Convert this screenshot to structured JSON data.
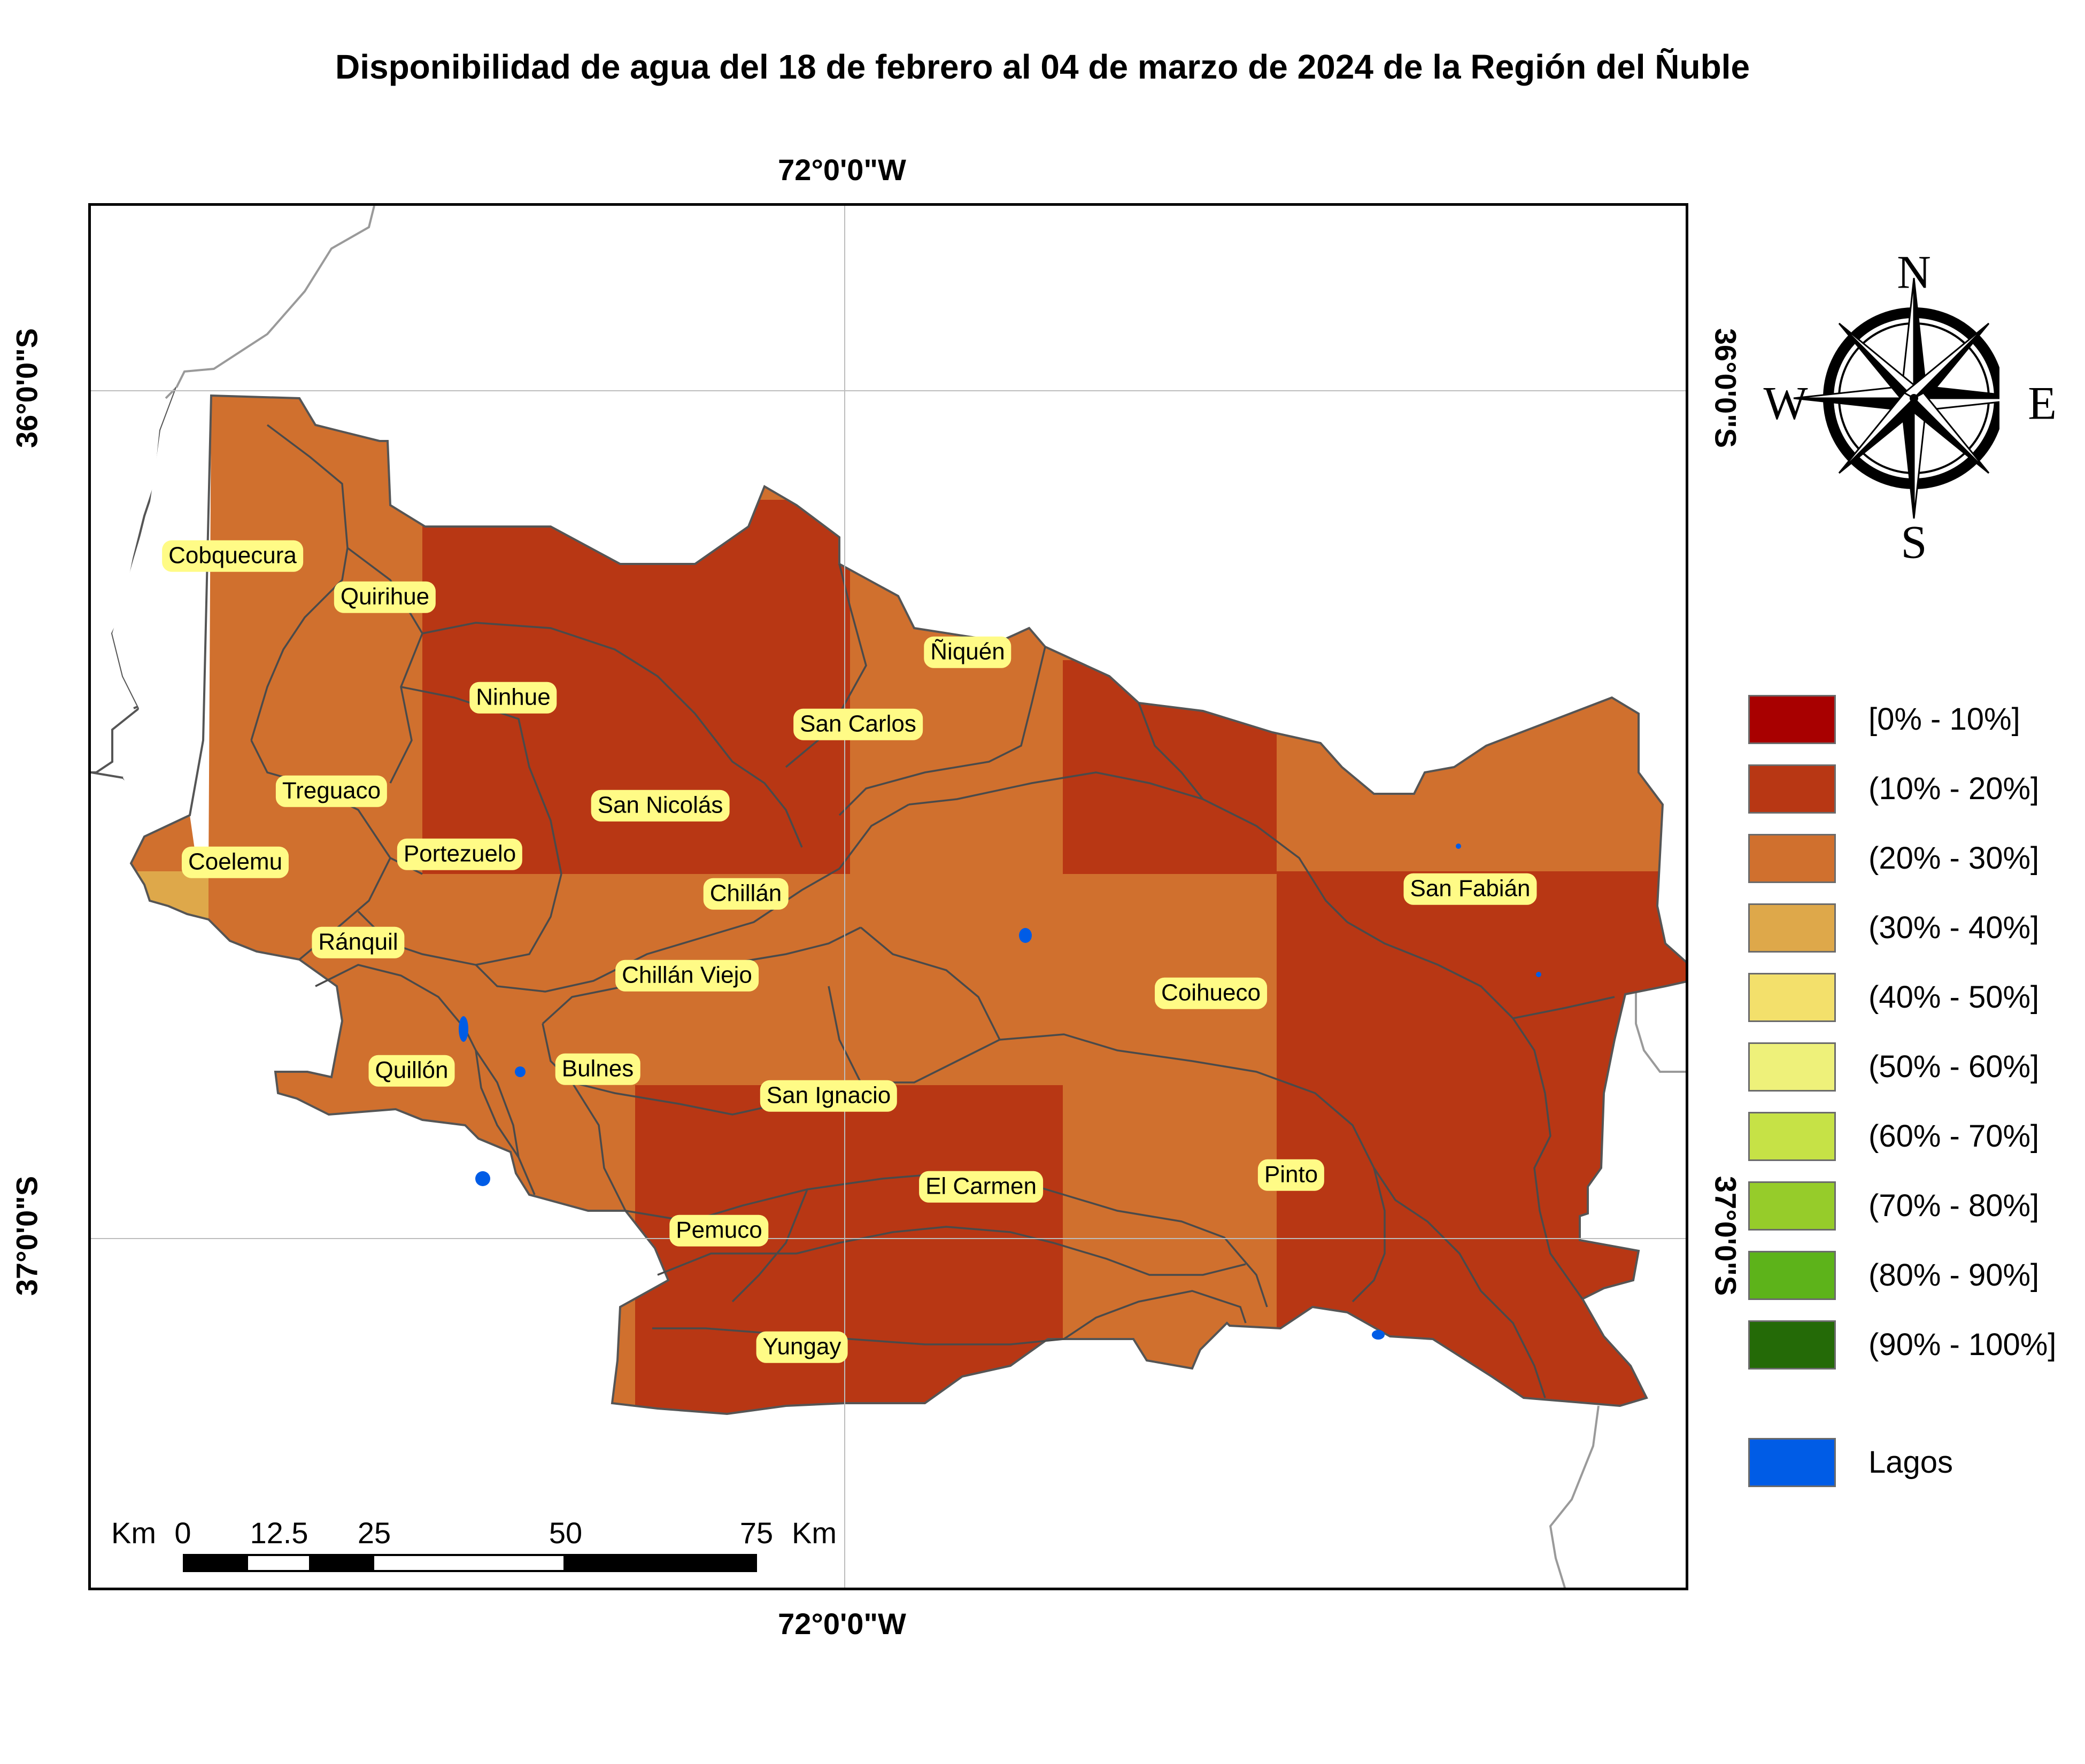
{
  "title": "Disponibilidad de agua del 18 de febrero al 04 de marzo de 2024 de la Región del Ñuble",
  "coordinates": {
    "longitude_top": "72°0'0\"W",
    "longitude_bottom": "72°0'0\"W",
    "latitude_36_left": "36°0'0\"S",
    "latitude_37_left": "37°0'0\"S",
    "latitude_36_right": "36°0'0\"S",
    "latitude_37_right": "37°0'0\"S"
  },
  "compass": {
    "n": "N",
    "s": "S",
    "e": "E",
    "w": "W"
  },
  "communes": [
    "Cobquecura",
    "Quirihue",
    "Ninhue",
    "Ñiquén",
    "San Carlos",
    "Treguaco",
    "San Nicolás",
    "Coelemu",
    "Portezuelo",
    "Chillán",
    "San Fabián",
    "Ránquil",
    "Chillán Viejo",
    "Coihueco",
    "Quillón",
    "Bulnes",
    "San Ignacio",
    "El Carmen",
    "Pinto",
    "Pemuco",
    "Yungay"
  ],
  "legend": [
    {
      "label": "[0% - 10%]",
      "color": "#a80000"
    },
    {
      "label": "(10% - 20%]",
      "color": "#b83714"
    },
    {
      "label": "(20% - 30%]",
      "color": "#d0702e"
    },
    {
      "label": "(30% - 40%]",
      "color": "#dea84a"
    },
    {
      "label": "(40% - 50%]",
      "color": "#f3e06b"
    },
    {
      "label": "(50% - 60%]",
      "color": "#eef17a"
    },
    {
      "label": "(60% - 70%]",
      "color": "#c6e246"
    },
    {
      "label": "(70% - 80%]",
      "color": "#96cc2a"
    },
    {
      "label": "(80% - 90%]",
      "color": "#5db31a"
    },
    {
      "label": "(90% - 100%]",
      "color": "#246a07"
    }
  ],
  "lakes_label": "Lagos",
  "lakes_color": "#005ce6",
  "scale": {
    "unit_left": "Km",
    "unit_right": "Km",
    "ticks": [
      "0",
      "12.5",
      "25",
      "50",
      "75"
    ]
  },
  "grid_classes": {
    "cobquecura_block": "(20% - 30%]",
    "ninhue_block": "(10% - 20%]",
    "san_carlos_block": "(10% - 20%]",
    "niquen_block": "(20% - 30%]",
    "coelemu_block": "(30% - 40%]",
    "san_fabian_block": "(10% - 20%]",
    "central_block": "(20% - 30%]",
    "san_ignacio_block": "(10% - 20%]",
    "el_carmen_block": "(10% - 20%]",
    "pinto_block": "(10% - 20%]"
  }
}
